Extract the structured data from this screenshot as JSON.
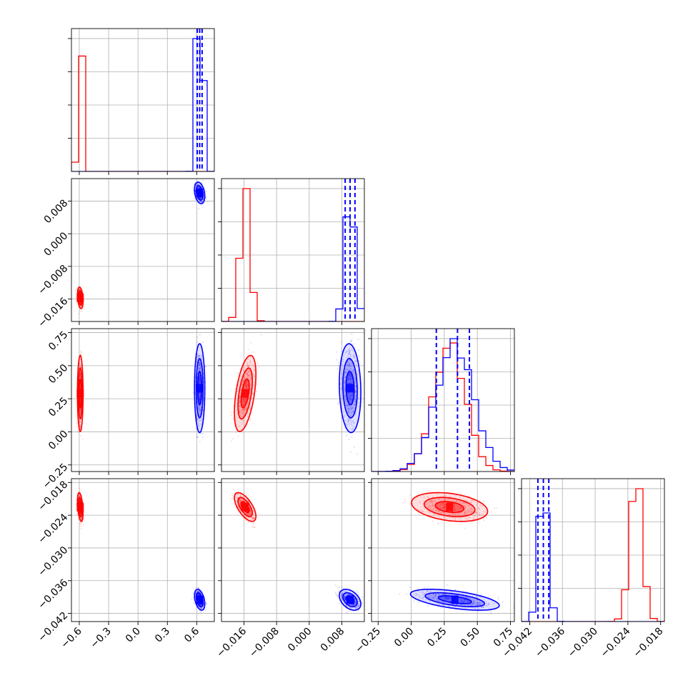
{
  "chart_data": {
    "type": "corner",
    "parameters": [
      {
        "range": [
          -0.68,
          0.78
        ],
        "ticks": [
          -0.6,
          -0.3,
          0.0,
          0.3,
          0.6
        ],
        "tick_labels": [
          "−0.6",
          "−0.3",
          "0.0",
          "0.3",
          "0.6"
        ]
      },
      {
        "range": [
          -0.0215,
          0.0135
        ],
        "ticks": [
          -0.016,
          -0.008,
          0.0,
          0.008
        ],
        "tick_labels": [
          "−0.016",
          "−0.008",
          "0.000",
          "0.008"
        ]
      },
      {
        "range": [
          -0.3,
          0.78
        ],
        "ticks": [
          -0.25,
          0.0,
          0.25,
          0.5,
          0.75
        ],
        "tick_labels": [
          "−0.25",
          "0.00",
          "0.25",
          "0.50",
          "0.75"
        ]
      },
      {
        "range": [
          -0.0435,
          -0.0173
        ],
        "ticks": [
          -0.042,
          -0.036,
          -0.03,
          -0.024,
          -0.018
        ],
        "tick_labels": [
          "−0.042",
          "−0.036",
          "−0.030",
          "−0.024",
          "−0.018"
        ]
      }
    ],
    "series": [
      {
        "color": "#ff0000",
        "hist_fill_color": "#f5a6a6",
        "means": [
          -0.59,
          -0.0157,
          0.29,
          -0.0225
        ],
        "sds": [
          0.012,
          0.0011,
          0.12,
          0.0011
        ],
        "correlations": [
          [
            0,
            1,
            -0.3
          ],
          [
            0,
            2,
            0.0
          ],
          [
            0,
            3,
            -0.4
          ],
          [
            1,
            2,
            0.5
          ],
          [
            1,
            3,
            -0.65
          ],
          [
            2,
            3,
            -0.3
          ]
        ],
        "quantile_lines": []
      },
      {
        "color": "#0000ff",
        "hist_fill_color": "#a9a9f5",
        "means": [
          0.63,
          0.01,
          0.33,
          -0.0395
        ],
        "sds": [
          0.022,
          0.0011,
          0.14,
          0.0008
        ],
        "correlations": [
          [
            0,
            1,
            -0.3
          ],
          [
            0,
            2,
            0.0
          ],
          [
            0,
            3,
            -0.4
          ],
          [
            1,
            2,
            -0.1
          ],
          [
            1,
            3,
            -0.4
          ],
          [
            2,
            3,
            -0.55
          ]
        ],
        "quantile_lines": [
          [
            0.605,
            0.63,
            0.655
          ],
          [
            0.0088,
            0.01,
            0.0112
          ],
          [
            0.19,
            0.35,
            0.44
          ],
          [
            -0.0405,
            -0.0395,
            -0.0385
          ]
        ]
      }
    ],
    "grid": true
  }
}
